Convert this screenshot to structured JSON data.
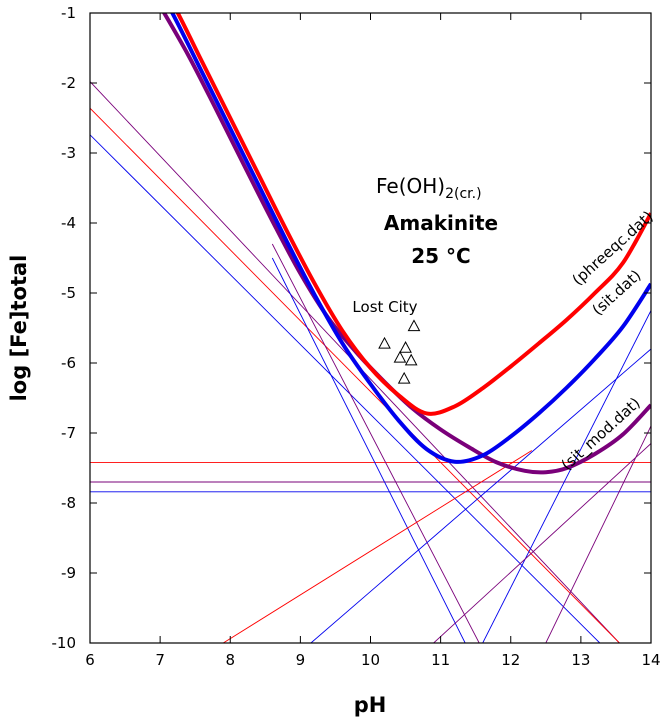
{
  "chart_data": {
    "type": "line",
    "title": "",
    "xlabel": "pH",
    "ylabel": "log [Fe]total",
    "xlim": [
      6,
      14
    ],
    "ylim": [
      -10,
      -1
    ],
    "x_ticks": [
      "6",
      "7",
      "8",
      "9",
      "10",
      "11",
      "12",
      "13",
      "14"
    ],
    "y_ticks": [
      "-1",
      "-2",
      "-3",
      "-4",
      "-5",
      "-6",
      "-7",
      "-8",
      "-9",
      "-10"
    ],
    "grid": false,
    "annotations": {
      "mineral_formula": "Fe(OH)",
      "mineral_subscript": "2(cr.)",
      "mineral_name": "Amakinite",
      "temperature": "25 °C",
      "site_label": "Lost City"
    },
    "series": [
      {
        "name": "(phreeqc.dat)",
        "color": "#ff0000",
        "x": [
          6.8,
          7.2,
          7.6,
          8.0,
          8.4,
          8.8,
          9.2,
          9.6,
          10.0,
          10.4,
          10.8,
          11.2,
          11.6,
          12.0,
          12.4,
          12.8,
          13.2,
          13.6,
          14.0
        ],
        "y": [
          -0.2,
          -0.9,
          -1.7,
          -2.5,
          -3.3,
          -4.1,
          -4.86,
          -5.54,
          -6.07,
          -6.46,
          -6.72,
          -6.62,
          -6.36,
          -6.05,
          -5.72,
          -5.38,
          -5.0,
          -4.57,
          -3.86
        ]
      },
      {
        "name": "(sit.dat)",
        "color": "#0000ee",
        "x": [
          6.8,
          7.2,
          7.6,
          8.0,
          8.4,
          8.8,
          9.2,
          9.6,
          10.0,
          10.4,
          10.8,
          11.2,
          11.6,
          12.0,
          12.4,
          12.8,
          13.2,
          13.6,
          14.0
        ],
        "y": [
          -0.3,
          -1.05,
          -1.85,
          -2.65,
          -3.45,
          -4.25,
          -5.02,
          -5.72,
          -6.3,
          -6.82,
          -7.23,
          -7.41,
          -7.32,
          -7.05,
          -6.72,
          -6.35,
          -5.94,
          -5.48,
          -4.87
        ]
      },
      {
        "name": "(sit_mod.dat)",
        "color": "#7a007a",
        "x": [
          7.0,
          7.4,
          7.8,
          8.2,
          8.6,
          9.0,
          9.4,
          9.8,
          10.2,
          10.6,
          11.0,
          11.4,
          11.8,
          12.2,
          12.5,
          12.8,
          13.2,
          13.6,
          14.0
        ],
        "y": [
          -0.9,
          -1.6,
          -2.38,
          -3.18,
          -3.97,
          -4.72,
          -5.36,
          -5.85,
          -6.27,
          -6.65,
          -6.95,
          -7.2,
          -7.42,
          -7.54,
          -7.56,
          -7.5,
          -7.3,
          -7.02,
          -6.6
        ]
      }
    ],
    "reference_lines": [
      {
        "color": "#ff0000",
        "kind": "horizontal",
        "y": -7.42
      },
      {
        "color": "#0000ee",
        "kind": "horizontal",
        "y": -7.84
      },
      {
        "color": "#7a007a",
        "kind": "horizontal",
        "y": -7.7
      },
      {
        "color": "#7a007a",
        "kind": "line",
        "x": [
          6.0,
          13.55
        ],
        "y": [
          -1.98,
          -10.0
        ]
      },
      {
        "color": "#ff0000",
        "kind": "line",
        "x": [
          6.0,
          13.55
        ],
        "y": [
          -2.36,
          -10.0
        ]
      },
      {
        "color": "#0000ee",
        "kind": "line",
        "x": [
          6.0,
          13.27
        ],
        "y": [
          -2.74,
          -10.0
        ]
      },
      {
        "color": "#0000ee",
        "kind": "line",
        "x": [
          8.6,
          11.35
        ],
        "y": [
          -4.5,
          -10.0
        ]
      },
      {
        "color": "#7a007a",
        "kind": "line",
        "x": [
          8.6,
          11.55
        ],
        "y": [
          -4.3,
          -10.0
        ]
      },
      {
        "color": "#ff0000",
        "kind": "line",
        "x": [
          7.9,
          12.3
        ],
        "y": [
          -10.0,
          -7.25
        ]
      },
      {
        "color": "#0000ee",
        "kind": "line",
        "x": [
          9.15,
          14.0
        ],
        "y": [
          -10.0,
          -5.8
        ]
      },
      {
        "color": "#0000ee",
        "kind": "line",
        "x": [
          11.6,
          14.0
        ],
        "y": [
          -10.0,
          -5.25
        ]
      },
      {
        "color": "#7a007a",
        "kind": "line",
        "x": [
          10.9,
          14.0
        ],
        "y": [
          -10.0,
          -7.15
        ]
      },
      {
        "color": "#7a007a",
        "kind": "line",
        "x": [
          12.5,
          14.0
        ],
        "y": [
          -10.0,
          -6.9
        ]
      }
    ],
    "markers": {
      "shape": "triangle-open",
      "x": [
        10.2,
        10.42,
        10.5,
        10.58,
        10.62,
        10.48
      ],
      "y": [
        -5.72,
        -5.92,
        -5.78,
        -5.96,
        -5.47,
        -6.22
      ]
    }
  }
}
